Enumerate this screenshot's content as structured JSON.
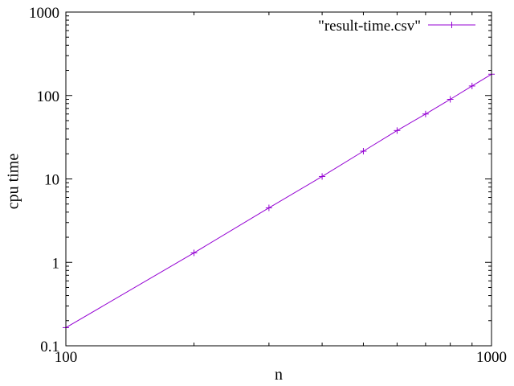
{
  "chart_data": {
    "type": "line",
    "xlabel": "n",
    "ylabel": "cpu time",
    "x_scale": "log",
    "y_scale": "log",
    "xlim": [
      100,
      1000
    ],
    "ylim": [
      0.1,
      1000
    ],
    "x_ticks": [
      {
        "value": 100,
        "label": "100"
      },
      {
        "value": 1000,
        "label": "1000"
      }
    ],
    "y_ticks": [
      {
        "value": 0.1,
        "label": "0.1"
      },
      {
        "value": 1,
        "label": "1"
      },
      {
        "value": 10,
        "label": "10"
      },
      {
        "value": 100,
        "label": "100"
      },
      {
        "value": 1000,
        "label": "1000"
      }
    ],
    "grid": false,
    "legend": "top-right",
    "series": [
      {
        "name": "\"result-time.csv\"",
        "color": "#9400d3",
        "marker": "plus",
        "x": [
          100,
          200,
          300,
          400,
          500,
          600,
          700,
          800,
          900,
          1000
        ],
        "y": [
          0.165,
          1.3,
          4.5,
          10.7,
          21.5,
          38,
          60,
          90,
          130,
          180
        ]
      }
    ]
  }
}
